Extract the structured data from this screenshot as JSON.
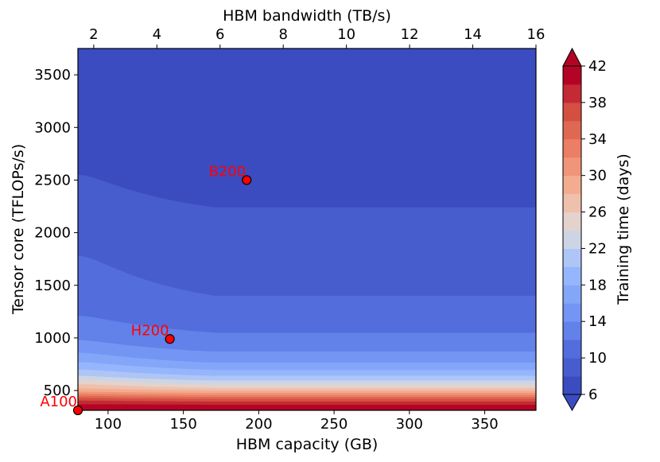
{
  "chart_data": {
    "type": "heatmap",
    "title": "",
    "xlabel": "HBM capacity (GB)",
    "x2label": "HBM bandwidth (TB/s)",
    "ylabel": "Tensor core (TFLOPs/s)",
    "colorbar_label": "Training time (days)",
    "colormap": "coolwarm",
    "xlim": [
      80,
      384
    ],
    "x2lim": [
      1.5,
      16
    ],
    "ylim": [
      312,
      3750
    ],
    "x_ticks": [
      100,
      150,
      200,
      250,
      300,
      350
    ],
    "x2_ticks": [
      2,
      4,
      6,
      8,
      10,
      12,
      14,
      16
    ],
    "y_ticks": [
      500,
      1000,
      1500,
      2000,
      2500,
      3000,
      3500
    ],
    "colorbar_range": [
      6,
      42
    ],
    "colorbar_levels": [
      6,
      8,
      10,
      12,
      14,
      16,
      18,
      20,
      22,
      24,
      26,
      28,
      30,
      32,
      34,
      36,
      38,
      40,
      42
    ],
    "colorbar_ticks": [
      6,
      10,
      14,
      18,
      22,
      26,
      30,
      34,
      38,
      42
    ],
    "colorbar_extend": "both",
    "contour_boundaries_tflops": [
      {
        "level": 8,
        "y": 2240,
        "y_left": 2550
      },
      {
        "level": 10,
        "y": 1400,
        "y_left": 1780
      },
      {
        "level": 12,
        "y": 1050,
        "y_left": 1210
      },
      {
        "level": 14,
        "y": 870,
        "y_left": 980
      },
      {
        "level": 16,
        "y": 765,
        "y_left": 860
      },
      {
        "level": 18,
        "y": 695,
        "y_left": 770
      },
      {
        "level": 20,
        "y": 640,
        "y_left": 700
      },
      {
        "level": 22,
        "y": 595,
        "y_left": 640
      },
      {
        "level": 24,
        "y": 555,
        "y_left": 600
      },
      {
        "level": 26,
        "y": 525,
        "y_left": 560
      },
      {
        "level": 28,
        "y": 500,
        "y_left": 520
      },
      {
        "level": 30,
        "y": 478,
        "y_left": 490
      },
      {
        "level": 32,
        "y": 458,
        "y_left": 470
      },
      {
        "level": 34,
        "y": 440,
        "y_left": 450
      },
      {
        "level": 36,
        "y": 420,
        "y_left": 430
      },
      {
        "level": 38,
        "y": 395,
        "y_left": 405
      },
      {
        "level": 40,
        "y": 365,
        "y_left": 370
      }
    ],
    "points": [
      {
        "name": "A100",
        "x": 80,
        "y": 312
      },
      {
        "name": "H200",
        "x": 141,
        "y": 990
      },
      {
        "name": "B200",
        "x": 192,
        "y": 2500
      }
    ],
    "colors": {
      "marker_fill": "#ff0000",
      "marker_edge": "#000000",
      "marker_label": "#ff0000"
    }
  }
}
